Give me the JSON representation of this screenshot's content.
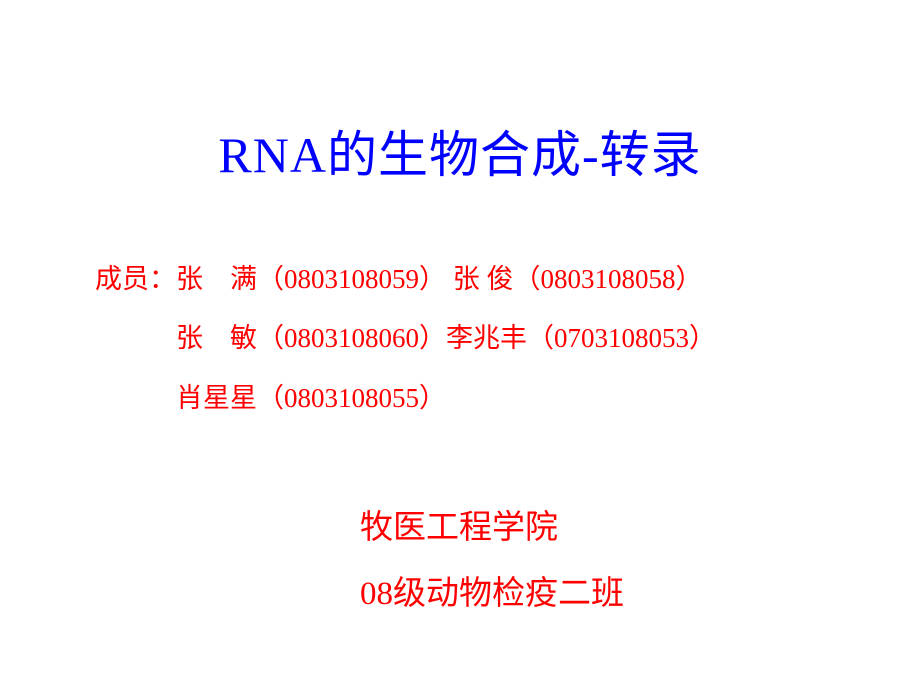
{
  "title": "RNA的生物合成-转录",
  "members": {
    "label": "成员：",
    "line1": "张　满（0803108059） 张 俊（0803108058）",
    "line2": "张　敏（0803108060）李兆丰（0703108053）",
    "line3": "肖星星（0803108055）"
  },
  "footer": {
    "institution": "牧医工程学院",
    "class": "08级动物检疫二班"
  },
  "colors": {
    "title_color": "#0000ff",
    "text_color": "#ff0000",
    "background_color": "#ffffff"
  },
  "typography": {
    "title_fontsize": 50,
    "members_fontsize": 27,
    "footer_fontsize": 33
  }
}
